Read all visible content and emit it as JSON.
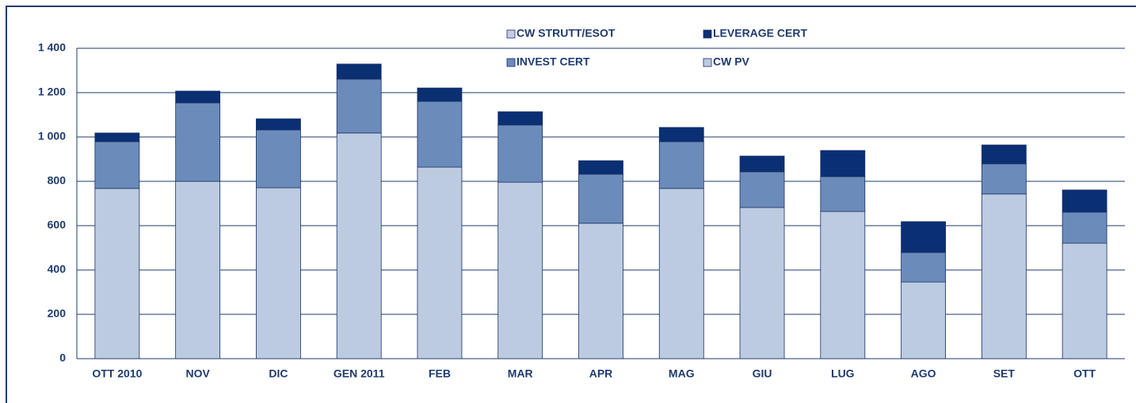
{
  "chart_data": {
    "type": "stacked_bar",
    "categories": [
      "OTT 2010",
      "NOV",
      "DIC",
      "GEN 2011",
      "FEB",
      "MAR",
      "APR",
      "MAG",
      "GIU",
      "LUG",
      "AGO",
      "SET",
      "OTT"
    ],
    "series": [
      {
        "name": "CW PV",
        "color": "#bccbe0",
        "values": [
          768,
          800,
          771,
          1018,
          864,
          796,
          611,
          768,
          682,
          664,
          346,
          743,
          521
        ]
      },
      {
        "name": "INVEST CERT",
        "color": "#6b8cba",
        "values": [
          211,
          354,
          261,
          243,
          297,
          258,
          221,
          211,
          161,
          157,
          133,
          136,
          140
        ]
      },
      {
        "name": "LEVERAGE CERT",
        "color": "#0a2f73",
        "values": [
          39,
          53,
          50,
          68,
          60,
          60,
          61,
          64,
          71,
          118,
          139,
          85,
          100
        ]
      },
      {
        "name": "CW STRUTT/ESOT",
        "color": "#c8cbe8",
        "values": [
          0,
          0,
          0,
          0,
          0,
          0,
          0,
          0,
          0,
          0,
          0,
          0,
          0
        ]
      }
    ],
    "ylim": [
      0,
      1400
    ],
    "yticks": [
      0,
      200,
      400,
      600,
      800,
      {
        "value": 1000,
        "label": "1 000"
      },
      {
        "value": 1200,
        "label": "1 200"
      },
      {
        "value": 1400,
        "label": "1 400"
      }
    ],
    "grid": true
  }
}
